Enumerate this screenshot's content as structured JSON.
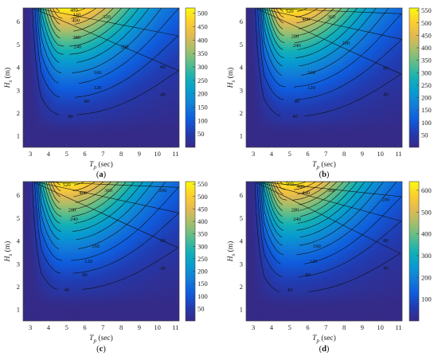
{
  "chart_data": [
    {
      "type": "heatmap",
      "label_pre": "(",
      "label_main": "a",
      "label_post": ")",
      "xlabel_main": "T",
      "xlabel_sub": "p",
      "xlabel_unit": " (sec)",
      "ylabel_main": "H",
      "ylabel_sub": "s",
      "ylabel_unit": " (m)",
      "x_ticks": [
        3,
        4,
        5,
        6,
        7,
        8,
        9,
        10,
        11
      ],
      "y_ticks": [
        1,
        2,
        3,
        4,
        5,
        6
      ],
      "xlim": [
        2.6,
        11.2
      ],
      "ylim": [
        0.5,
        6.6
      ],
      "zlim": [
        0,
        520
      ],
      "colorbar_ticks": [
        50,
        100,
        150,
        200,
        250,
        300,
        350,
        400,
        450,
        500
      ],
      "contour_levels": [
        40,
        80,
        120,
        160,
        200,
        240,
        280,
        320,
        360,
        400,
        440,
        480,
        520
      ],
      "contour_labels": [
        {
          "text": "40",
          "x": 5.2,
          "y": 1.85
        },
        {
          "text": "40",
          "x": 10.3,
          "y": 2.8
        },
        {
          "text": "80",
          "x": 6.1,
          "y": 2.5
        },
        {
          "text": "80",
          "x": 10.3,
          "y": 4.0
        },
        {
          "text": "120",
          "x": 6.7,
          "y": 3.1
        },
        {
          "text": "160",
          "x": 6.7,
          "y": 3.75
        },
        {
          "text": "200",
          "x": 8.2,
          "y": 4.9
        },
        {
          "text": "240",
          "x": 5.6,
          "y": 4.9
        },
        {
          "text": "280",
          "x": 5.55,
          "y": 5.3
        },
        {
          "text": "320",
          "x": 7.2,
          "y": 6.2
        },
        {
          "text": "400",
          "x": 5.5,
          "y": 6.05
        },
        {
          "text": "440",
          "x": 5.55,
          "y": 6.28
        },
        {
          "text": "480",
          "x": 5.4,
          "y": 6.5
        }
      ]
    },
    {
      "type": "heatmap",
      "label_pre": "(",
      "label_main": "b",
      "label_post": ")",
      "xlabel_main": "T",
      "xlabel_sub": "p",
      "xlabel_unit": " (sec)",
      "ylabel_main": "H",
      "ylabel_sub": "s",
      "ylabel_unit": " (m)",
      "x_ticks": [
        3,
        4,
        5,
        6,
        7,
        8,
        9,
        10,
        11
      ],
      "y_ticks": [
        1,
        2,
        3,
        4,
        5,
        6
      ],
      "xlim": [
        2.6,
        11.2
      ],
      "ylim": [
        0.5,
        6.6
      ],
      "zlim": [
        0,
        560
      ],
      "colorbar_ticks": [
        50,
        100,
        150,
        200,
        250,
        300,
        350,
        400,
        450,
        500,
        550
      ],
      "contour_levels": [
        40,
        80,
        120,
        160,
        200,
        240,
        280,
        320,
        360,
        400,
        440,
        480,
        520
      ],
      "contour_labels": [
        {
          "text": "40",
          "x": 5.3,
          "y": 1.85
        },
        {
          "text": "40",
          "x": 10.3,
          "y": 2.8
        },
        {
          "text": "80",
          "x": 5.4,
          "y": 2.5
        },
        {
          "text": "80",
          "x": 10.3,
          "y": 3.95
        },
        {
          "text": "120",
          "x": 6.2,
          "y": 3.1
        },
        {
          "text": "160",
          "x": 6.2,
          "y": 3.75
        },
        {
          "text": "200",
          "x": 8.1,
          "y": 5.05
        },
        {
          "text": "240",
          "x": 5.4,
          "y": 4.95
        },
        {
          "text": "280",
          "x": 5.3,
          "y": 5.35
        },
        {
          "text": "360",
          "x": 7.3,
          "y": 6.2
        },
        {
          "text": "400",
          "x": 5.9,
          "y": 6.1
        },
        {
          "text": "520",
          "x": 5.0,
          "y": 6.45
        }
      ]
    },
    {
      "type": "heatmap",
      "label_pre": "(",
      "label_main": "c",
      "label_post": ")",
      "xlabel_main": "T",
      "xlabel_sub": "p",
      "xlabel_unit": " (sec)",
      "ylabel_main": "H",
      "ylabel_sub": "s",
      "ylabel_unit": " (m)",
      "x_ticks": [
        3,
        4,
        5,
        6,
        7,
        8,
        9,
        10,
        11
      ],
      "y_ticks": [
        1,
        2,
        3,
        4,
        5,
        6
      ],
      "xlim": [
        2.6,
        11.2
      ],
      "ylim": [
        0.5,
        6.6
      ],
      "zlim": [
        0,
        560
      ],
      "colorbar_ticks": [
        50,
        100,
        150,
        200,
        250,
        300,
        350,
        400,
        450,
        500,
        550
      ],
      "contour_levels": [
        40,
        80,
        120,
        160,
        200,
        240,
        280,
        320,
        360,
        400,
        440,
        480,
        520
      ],
      "contour_labels": [
        {
          "text": "40",
          "x": 5.0,
          "y": 1.85
        },
        {
          "text": "40",
          "x": 10.3,
          "y": 2.8
        },
        {
          "text": "80",
          "x": 6.0,
          "y": 2.5
        },
        {
          "text": "80",
          "x": 10.3,
          "y": 4.0
        },
        {
          "text": "120",
          "x": 6.2,
          "y": 3.1
        },
        {
          "text": "160",
          "x": 6.6,
          "y": 3.75
        },
        {
          "text": "200",
          "x": 10.3,
          "y": 6.2
        },
        {
          "text": "240",
          "x": 5.4,
          "y": 4.95
        },
        {
          "text": "280",
          "x": 5.3,
          "y": 5.35
        },
        {
          "text": "360",
          "x": 7.3,
          "y": 6.2
        },
        {
          "text": "400",
          "x": 5.9,
          "y": 6.1
        },
        {
          "text": "520",
          "x": 5.0,
          "y": 6.45
        }
      ]
    },
    {
      "type": "heatmap",
      "label_pre": "(",
      "label_main": "d",
      "label_post": ")",
      "xlabel_main": "T",
      "xlabel_sub": "p",
      "xlabel_unit": " (sec)",
      "ylabel_main": "H",
      "ylabel_sub": "s",
      "ylabel_unit": " (m)",
      "x_ticks": [
        3,
        4,
        5,
        6,
        7,
        8,
        9,
        10,
        11
      ],
      "y_ticks": [
        1,
        2,
        3,
        4,
        5,
        6
      ],
      "xlim": [
        2.6,
        11.2
      ],
      "ylim": [
        0.5,
        6.6
      ],
      "zlim": [
        0,
        640
      ],
      "colorbar_ticks": [
        100,
        200,
        300,
        400,
        500,
        600
      ],
      "contour_levels": [
        40,
        80,
        120,
        160,
        200,
        240,
        280,
        320,
        360,
        400,
        440,
        480,
        520,
        560,
        600
      ],
      "contour_labels": [
        {
          "text": "40",
          "x": 5.0,
          "y": 1.85
        },
        {
          "text": "40",
          "x": 10.3,
          "y": 2.8
        },
        {
          "text": "80",
          "x": 6.0,
          "y": 2.5
        },
        {
          "text": "80",
          "x": 10.3,
          "y": 4.0
        },
        {
          "text": "120",
          "x": 6.3,
          "y": 3.1
        },
        {
          "text": "160",
          "x": 6.5,
          "y": 3.75
        },
        {
          "text": "200",
          "x": 10.3,
          "y": 5.8
        },
        {
          "text": "240",
          "x": 5.4,
          "y": 4.95
        },
        {
          "text": "280",
          "x": 5.3,
          "y": 5.35
        },
        {
          "text": "360",
          "x": 7.3,
          "y": 6.2
        },
        {
          "text": "440",
          "x": 5.9,
          "y": 6.1
        },
        {
          "text": "480",
          "x": 5.6,
          "y": 6.38
        },
        {
          "text": "560",
          "x": 5.0,
          "y": 6.5
        }
      ]
    }
  ]
}
